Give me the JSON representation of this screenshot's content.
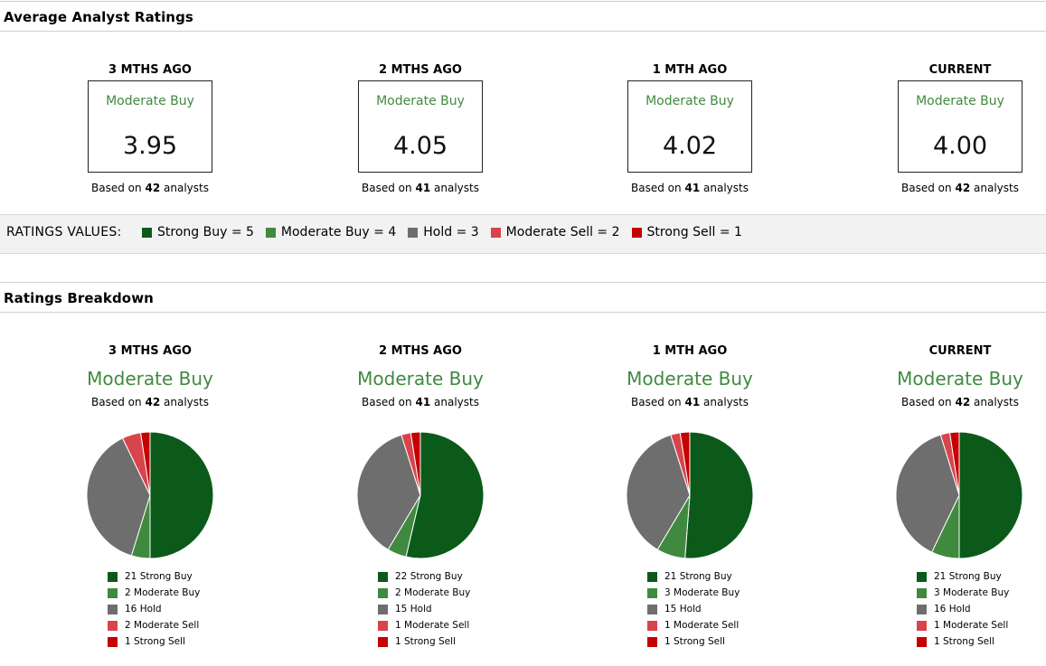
{
  "average": {
    "title": "Average Analyst Ratings",
    "based_prefix": "Based on",
    "based_suffix": "analysts",
    "periods": [
      {
        "label": "3 MTHS AGO",
        "rating": "Moderate Buy",
        "score": "3.95",
        "analysts": "42"
      },
      {
        "label": "2 MTHS AGO",
        "rating": "Moderate Buy",
        "score": "4.05",
        "analysts": "41"
      },
      {
        "label": "1 MTH AGO",
        "rating": "Moderate Buy",
        "score": "4.02",
        "analysts": "41"
      },
      {
        "label": "CURRENT",
        "rating": "Moderate Buy",
        "score": "4.00",
        "analysts": "42"
      }
    ]
  },
  "ratings_values": {
    "label": "RATINGS VALUES:",
    "items": [
      {
        "text": "Strong Buy = 5",
        "color": "#0b5a1a"
      },
      {
        "text": "Moderate Buy = 4",
        "color": "#3f8a3f"
      },
      {
        "text": "Hold = 3",
        "color": "#6e6e6e"
      },
      {
        "text": "Moderate Sell = 2",
        "color": "#d9434b"
      },
      {
        "text": "Strong Sell = 1",
        "color": "#c40000"
      }
    ]
  },
  "breakdown": {
    "title": "Ratings Breakdown"
  },
  "chart_data": [
    {
      "type": "pie",
      "title": "3 MTHS AGO",
      "subtitle": "Moderate Buy",
      "analysts": "42",
      "categories": [
        "Strong Buy",
        "Moderate Buy",
        "Hold",
        "Moderate Sell",
        "Strong Sell"
      ],
      "values": [
        21,
        2,
        16,
        2,
        1
      ],
      "legend": [
        "21 Strong Buy",
        "2 Moderate Buy",
        "16 Hold",
        "2 Moderate Sell",
        "1 Strong Sell"
      ]
    },
    {
      "type": "pie",
      "title": "2 MTHS AGO",
      "subtitle": "Moderate Buy",
      "analysts": "41",
      "categories": [
        "Strong Buy",
        "Moderate Buy",
        "Hold",
        "Moderate Sell",
        "Strong Sell"
      ],
      "values": [
        22,
        2,
        15,
        1,
        1
      ],
      "legend": [
        "22 Strong Buy",
        "2 Moderate Buy",
        "15 Hold",
        "1 Moderate Sell",
        "1 Strong Sell"
      ]
    },
    {
      "type": "pie",
      "title": "1 MTH AGO",
      "subtitle": "Moderate Buy",
      "analysts": "41",
      "categories": [
        "Strong Buy",
        "Moderate Buy",
        "Hold",
        "Moderate Sell",
        "Strong Sell"
      ],
      "values": [
        21,
        3,
        15,
        1,
        1
      ],
      "legend": [
        "21 Strong Buy",
        "3 Moderate Buy",
        "15 Hold",
        "1 Moderate Sell",
        "1 Strong Sell"
      ]
    },
    {
      "type": "pie",
      "title": "CURRENT",
      "subtitle": "Moderate Buy",
      "analysts": "42",
      "categories": [
        "Strong Buy",
        "Moderate Buy",
        "Hold",
        "Moderate Sell",
        "Strong Sell"
      ],
      "values": [
        21,
        3,
        16,
        1,
        1
      ],
      "legend": [
        "21 Strong Buy",
        "3 Moderate Buy",
        "16 Hold",
        "1 Moderate Sell",
        "1 Strong Sell"
      ]
    }
  ],
  "colors": [
    "#0b5a1a",
    "#3f8a3f",
    "#6e6e6e",
    "#d9434b",
    "#c40000"
  ]
}
